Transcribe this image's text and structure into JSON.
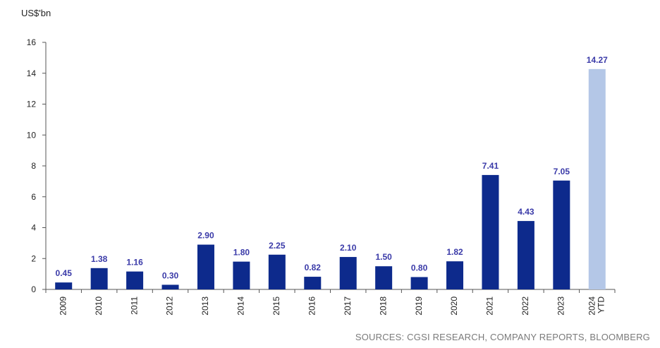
{
  "chart_data": {
    "type": "bar",
    "ylabel": "US$'bn",
    "ylim": [
      0,
      16
    ],
    "yticks": [
      0,
      2,
      4,
      6,
      8,
      10,
      12,
      14,
      16
    ],
    "categories": [
      [
        "2009"
      ],
      [
        "2010"
      ],
      [
        "2011"
      ],
      [
        "2012"
      ],
      [
        "2013"
      ],
      [
        "2014"
      ],
      [
        "2015"
      ],
      [
        "2016"
      ],
      [
        "2017"
      ],
      [
        "2018"
      ],
      [
        "2019"
      ],
      [
        "2020"
      ],
      [
        "2021"
      ],
      [
        "2022"
      ],
      [
        "2023"
      ],
      [
        "YTD",
        "2024"
      ]
    ],
    "values": [
      0.45,
      1.38,
      1.16,
      0.3,
      2.9,
      1.8,
      2.25,
      0.82,
      2.1,
      1.5,
      0.8,
      1.82,
      7.41,
      4.43,
      7.05,
      14.27
    ],
    "data_labels": [
      "0.45",
      "1.38",
      "1.16",
      "0.30",
      "2.90",
      "1.80",
      "2.25",
      "0.82",
      "2.10",
      "1.50",
      "0.80",
      "1.82",
      "7.41",
      "4.43",
      "7.05",
      "14.27"
    ],
    "colors": {
      "bar": "#0d2a8c",
      "highlight_bar": "#b4c7e7",
      "label": "#3a3aa8",
      "axis": "#555555"
    },
    "highlight_index": 15,
    "grid": false,
    "legend": "none"
  },
  "source": "SOURCES: CGSI RESEARCH, COMPANY REPORTS, BLOOMBERG"
}
